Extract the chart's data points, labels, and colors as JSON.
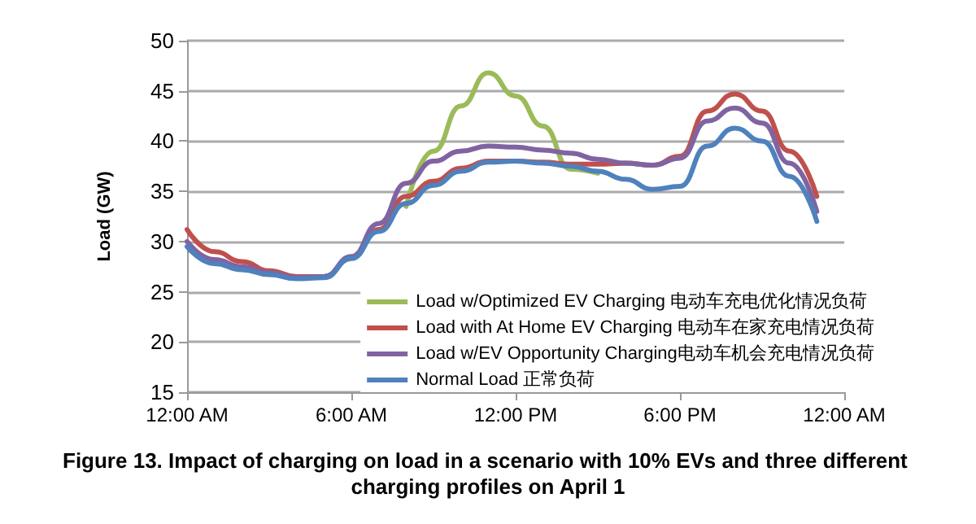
{
  "chart_data": {
    "type": "line",
    "title": "Figure 13. Impact of charging on load in a scenario with 10% EVs and three different charging profiles on April 1",
    "ylabel": "Load (GW)",
    "x": [
      0,
      1,
      2,
      3,
      4,
      5,
      6,
      7,
      8,
      9,
      10,
      11,
      12,
      13,
      14,
      15,
      16,
      17,
      18,
      19,
      20,
      21,
      22,
      23
    ],
    "xlim": [
      0,
      24
    ],
    "xticks": [
      {
        "value": 0,
        "label": "12:00 AM"
      },
      {
        "value": 6,
        "label": "6:00 AM"
      },
      {
        "value": 12,
        "label": "12:00 PM"
      },
      {
        "value": 18,
        "label": "6:00 PM"
      },
      {
        "value": 24,
        "label": "12:00 AM"
      }
    ],
    "ylim": [
      15,
      50
    ],
    "yticks": [
      15,
      20,
      25,
      30,
      35,
      40,
      45,
      50
    ],
    "grid": "y",
    "legend": "bottom right",
    "marker": "none",
    "line_style": "solid",
    "series": [
      {
        "name": "Load w/Optimized EV Charging 电动车充电优化情况负荷",
        "color": "#9bbb59",
        "values": [
          null,
          null,
          null,
          null,
          null,
          null,
          null,
          null,
          33.5,
          39,
          43.5,
          46.8,
          44.5,
          41.5,
          37.2,
          36.8,
          null,
          null,
          null,
          null,
          null,
          null,
          null,
          null
        ]
      },
      {
        "name": "Load with At Home EV Charging 电动车在家充电情况负荷",
        "color": "#c0504d",
        "values": [
          31.2,
          29,
          28,
          27.1,
          26.5,
          26.5,
          28.4,
          31.2,
          34.5,
          36,
          37.3,
          38,
          38,
          37.9,
          37.7,
          37.7,
          37.8,
          37.6,
          38.5,
          43,
          44.7,
          43,
          39,
          34.5
        ]
      },
      {
        "name": "Load w/EV Opportunity Charging电动车机会充电情况负荷",
        "color": "#8064a2",
        "values": [
          30,
          28.2,
          27.5,
          26.9,
          26.4,
          26.5,
          28.5,
          31.8,
          35.8,
          38,
          39,
          39.5,
          39.4,
          39.1,
          38.8,
          38.2,
          37.8,
          37.6,
          38.3,
          42,
          43.3,
          41.8,
          37.8,
          33
        ]
      },
      {
        "name": "Normal Load 正常负荷",
        "color": "#4f81bd",
        "values": [
          29.5,
          27.8,
          27.2,
          26.7,
          26.3,
          26.4,
          28.3,
          31,
          33.8,
          35.6,
          37,
          37.9,
          38,
          37.8,
          37.5,
          37,
          36.2,
          35.2,
          35.5,
          39.5,
          41.3,
          40,
          36.5,
          32
        ]
      }
    ]
  }
}
